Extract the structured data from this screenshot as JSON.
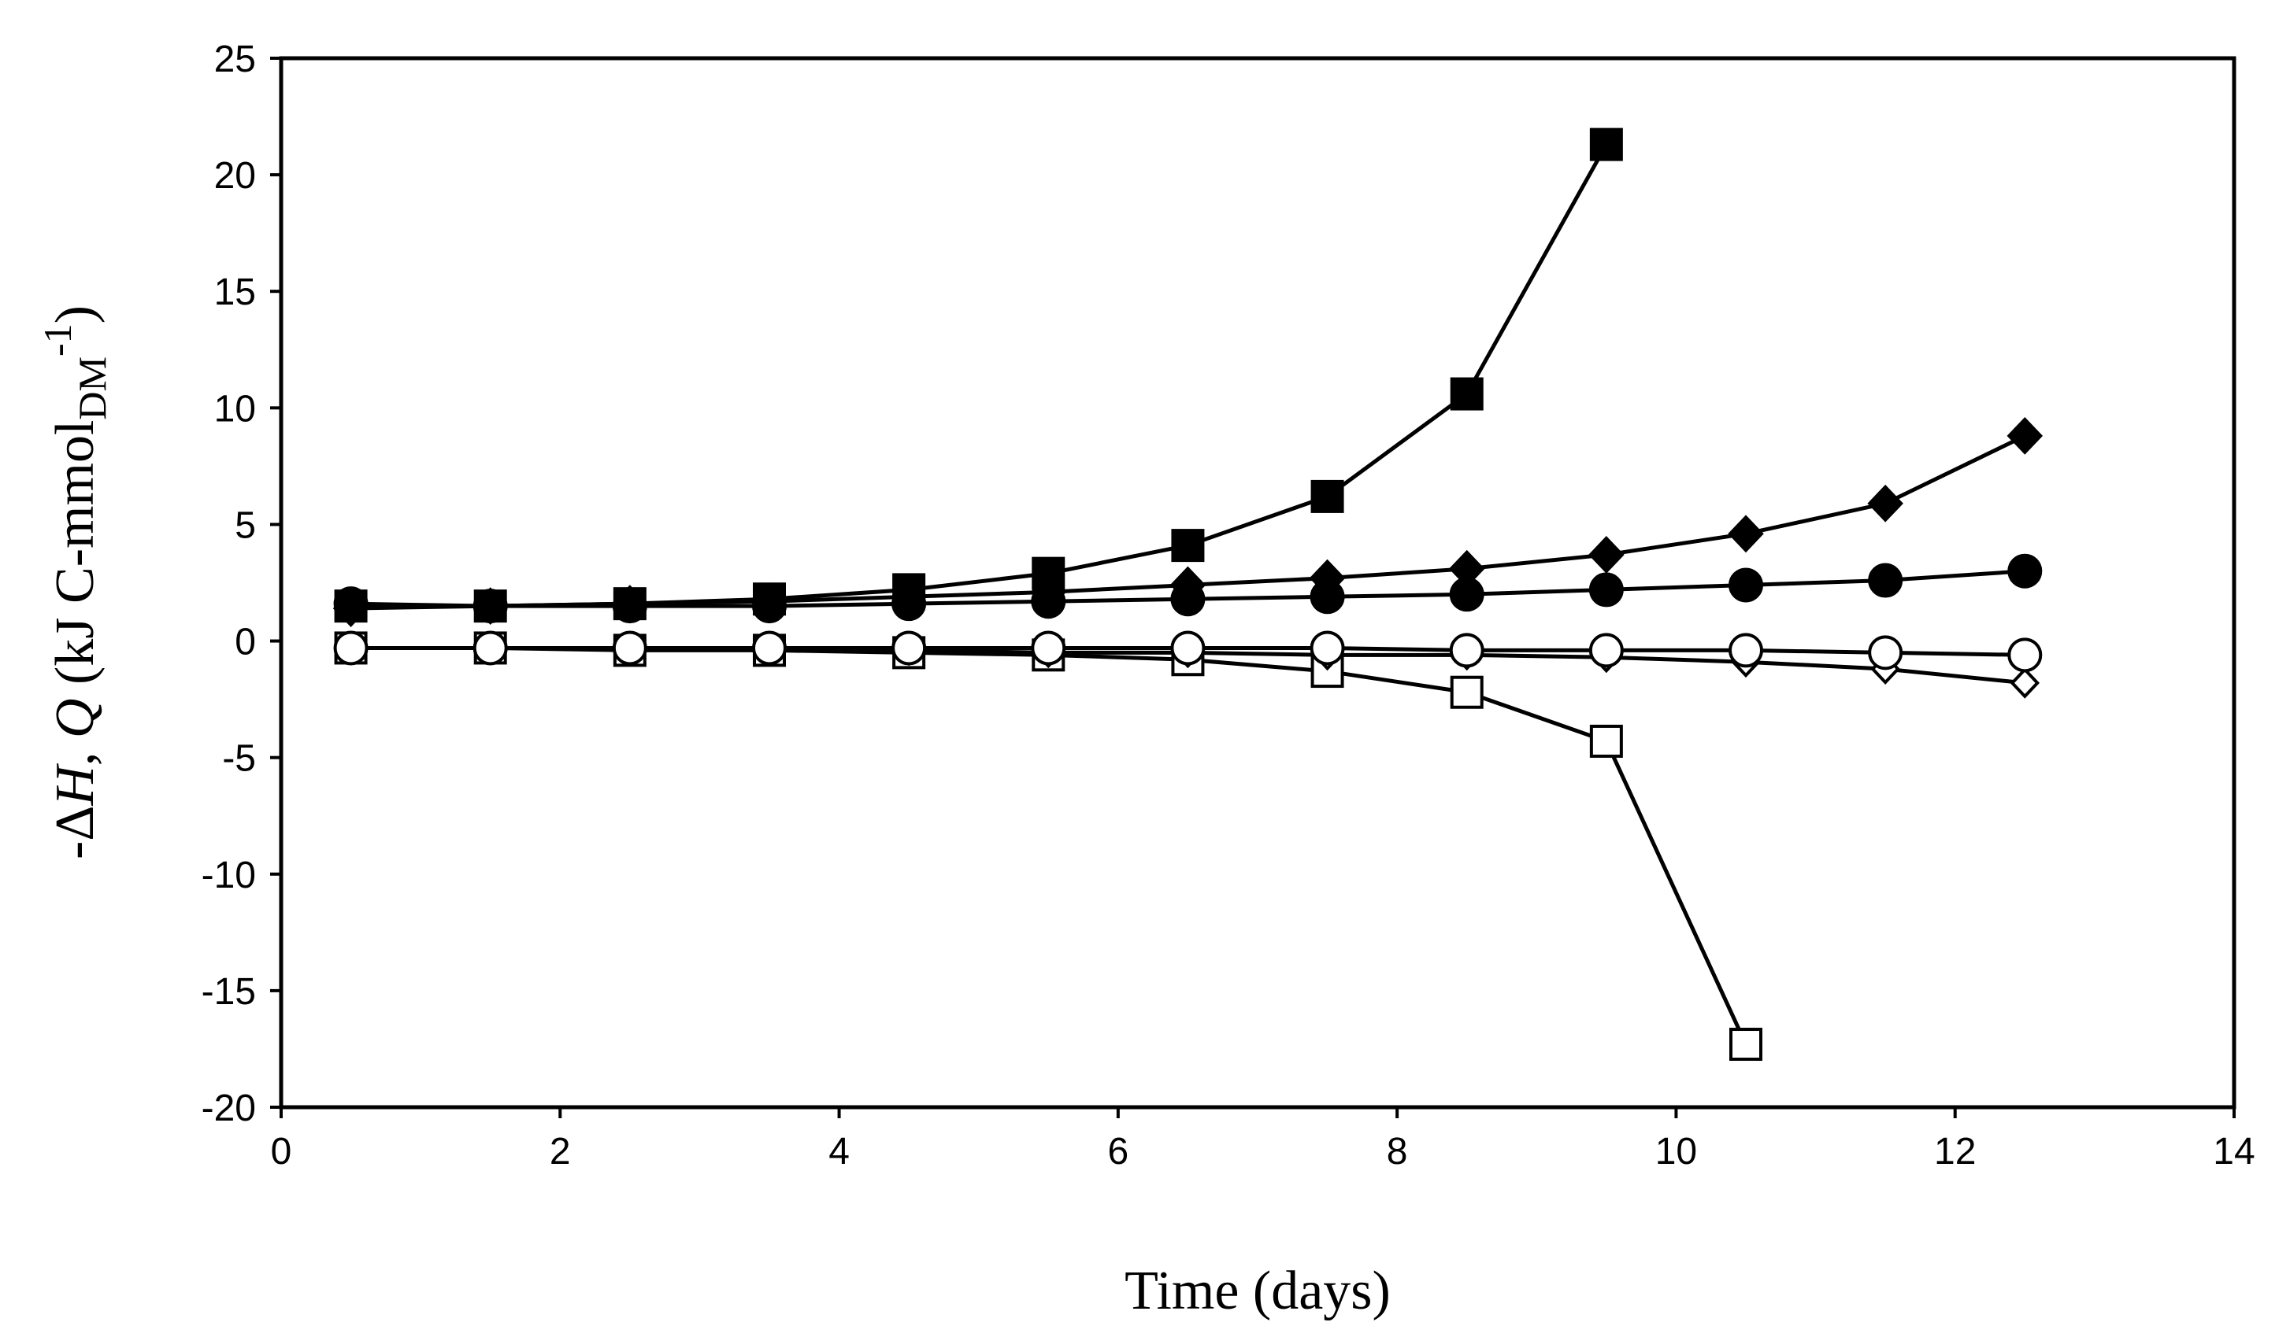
{
  "chart_data": {
    "type": "line",
    "title": "",
    "xlabel": "Time (days)",
    "ylabel": {
      "prefix": "-Δ",
      "sym_h": "H",
      "comma": ", ",
      "sym_q": "Q",
      "unit_open": " (kJ C-mmol",
      "subscript": "DM",
      "superscript": "-1",
      "close": ")"
    },
    "xlim": [
      0,
      14
    ],
    "ylim": [
      -20,
      25
    ],
    "xticks": [
      "0",
      "2",
      "4",
      "6",
      "8",
      "10",
      "12",
      "14"
    ],
    "yticks": [
      "25",
      "20",
      "15",
      "10",
      "5",
      "0",
      "-5",
      "-10",
      "-15",
      "-20"
    ],
    "grid": false,
    "series": [
      {
        "name": "filled-square",
        "marker": "square",
        "filled": true,
        "x": [
          0.5,
          1.5,
          2.5,
          3.5,
          4.5,
          5.5,
          6.5,
          7.5,
          8.5,
          9.5
        ],
        "y": [
          1.5,
          1.5,
          1.6,
          1.8,
          2.2,
          2.9,
          4.1,
          6.2,
          10.6,
          21.3
        ]
      },
      {
        "name": "filled-diamond",
        "marker": "diamond",
        "filled": true,
        "x": [
          0.5,
          1.5,
          2.5,
          3.5,
          4.5,
          5.5,
          6.5,
          7.5,
          8.5,
          9.5,
          10.5,
          11.5,
          12.5
        ],
        "y": [
          1.4,
          1.5,
          1.6,
          1.7,
          1.9,
          2.1,
          2.4,
          2.7,
          3.1,
          3.7,
          4.6,
          5.9,
          8.8
        ]
      },
      {
        "name": "filled-circle",
        "marker": "circle",
        "filled": true,
        "x": [
          0.5,
          1.5,
          2.5,
          3.5,
          4.5,
          5.5,
          6.5,
          7.5,
          8.5,
          9.5,
          10.5,
          11.5,
          12.5
        ],
        "y": [
          1.6,
          1.5,
          1.5,
          1.5,
          1.6,
          1.7,
          1.8,
          1.9,
          2.0,
          2.2,
          2.4,
          2.6,
          3.0
        ]
      },
      {
        "name": "open-circle",
        "marker": "circle",
        "filled": false,
        "x": [
          0.5,
          1.5,
          2.5,
          3.5,
          4.5,
          5.5,
          6.5,
          7.5,
          8.5,
          9.5,
          10.5,
          11.5,
          12.5
        ],
        "y": [
          -0.3,
          -0.3,
          -0.3,
          -0.3,
          -0.3,
          -0.3,
          -0.3,
          -0.3,
          -0.4,
          -0.4,
          -0.4,
          -0.5,
          -0.6
        ]
      },
      {
        "name": "open-diamond",
        "marker": "diamond",
        "filled": false,
        "x": [
          0.5,
          1.5,
          2.5,
          3.5,
          4.5,
          5.5,
          6.5,
          7.5,
          8.5,
          9.5,
          10.5,
          11.5,
          12.5
        ],
        "y": [
          -0.3,
          -0.3,
          -0.3,
          -0.4,
          -0.4,
          -0.5,
          -0.5,
          -0.6,
          -0.6,
          -0.7,
          -0.9,
          -1.2,
          -1.8
        ]
      },
      {
        "name": "open-square",
        "marker": "square",
        "filled": false,
        "x": [
          0.5,
          1.5,
          2.5,
          3.5,
          4.5,
          5.5,
          6.5,
          7.5,
          8.5,
          9.5,
          10.5
        ],
        "y": [
          -0.3,
          -0.3,
          -0.4,
          -0.4,
          -0.5,
          -0.6,
          -0.8,
          -1.3,
          -2.2,
          -4.3,
          -17.3
        ]
      }
    ]
  }
}
